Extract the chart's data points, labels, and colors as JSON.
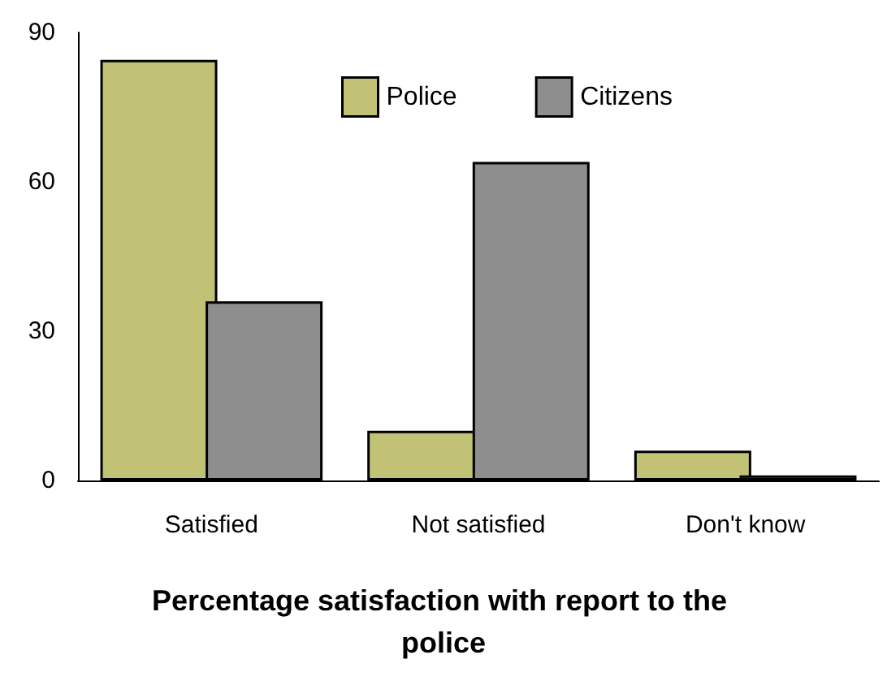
{
  "chart_data": {
    "type": "bar",
    "title": "Percentage satisfaction with report to the police",
    "categories": [
      "Satisfied",
      "Not satisfied",
      "Don't know"
    ],
    "series": [
      {
        "name": "Police",
        "color": "#c2c276",
        "values": [
          84.5,
          10,
          6
        ]
      },
      {
        "name": "Citizens",
        "color": "#8e8e8e",
        "values": [
          36,
          64,
          1
        ]
      }
    ],
    "ylim": [
      0,
      90
    ],
    "yticks": [
      0,
      30,
      60,
      90
    ],
    "grid": false,
    "legend": "top right"
  }
}
